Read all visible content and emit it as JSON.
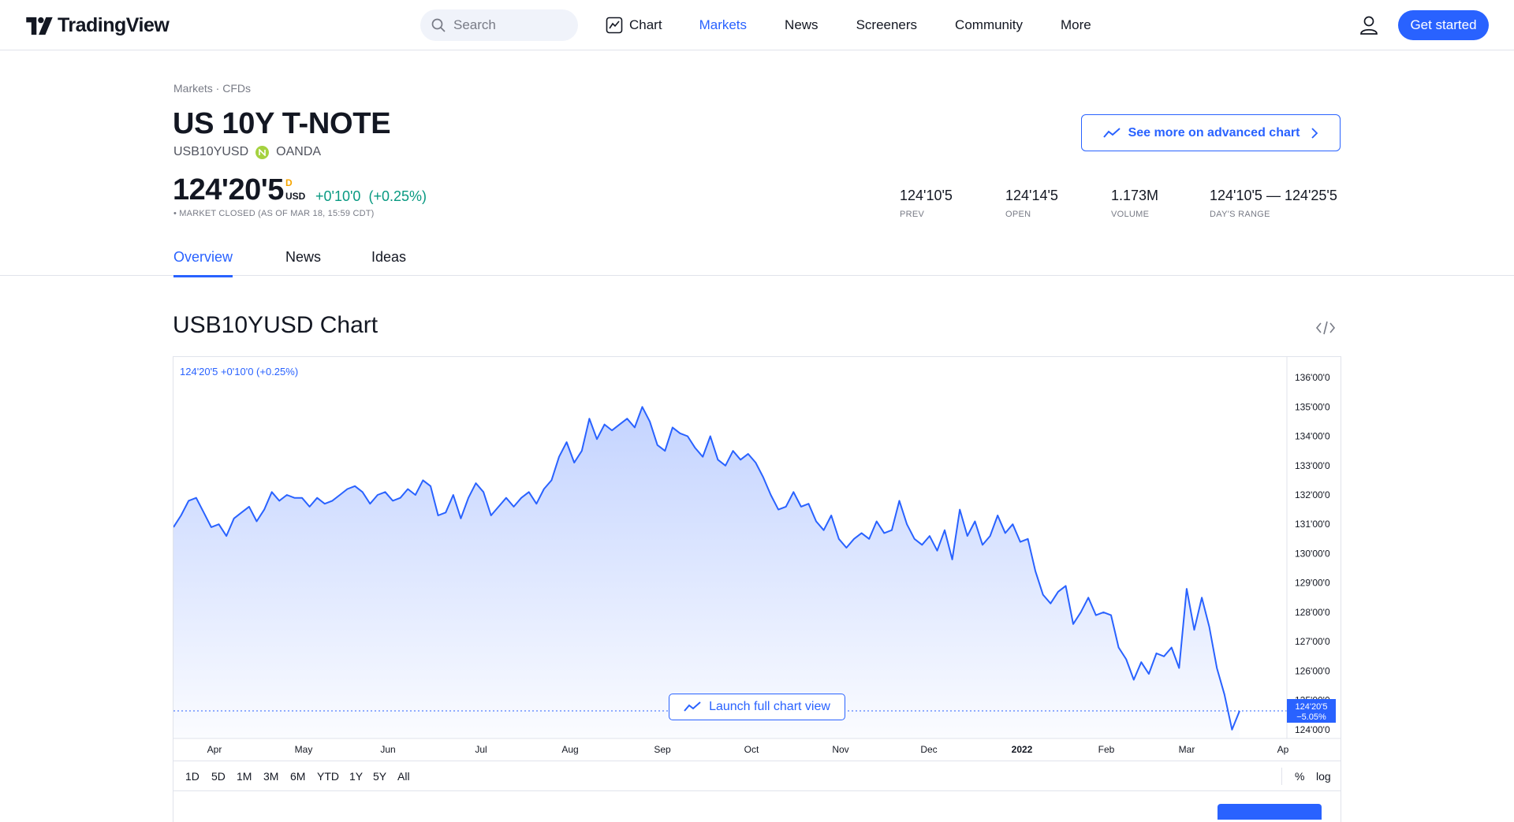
{
  "header": {
    "brand": "TradingView",
    "search_placeholder": "Search",
    "nav": [
      "Chart",
      "Markets",
      "News",
      "Screeners",
      "Community",
      "More"
    ],
    "nav_active": "Markets",
    "cta": "Get started"
  },
  "instrument": {
    "breadcrumb": "Markets · CFDs",
    "title": "US 10Y T-NOTE",
    "symbol": "USB10YUSD",
    "exchange": "OANDA",
    "advanced_chart_label": "See more on advanced chart",
    "price": "124'20'5",
    "price_flag": "D",
    "currency": "USD",
    "change": "+0'10'0",
    "change_pct": "(+0.25%)",
    "status": "• MARKET CLOSED (AS OF MAR 18, 15:59 CDT)",
    "stats": [
      {
        "value": "124'10'5",
        "label": "PREV"
      },
      {
        "value": "124'14'5",
        "label": "OPEN"
      },
      {
        "value": "1.173M",
        "label": "VOLUME"
      },
      {
        "value": "124'10'5 — 124'25'5",
        "label": "DAY'S RANGE"
      }
    ]
  },
  "tabs": [
    "Overview",
    "News",
    "Ideas"
  ],
  "tab_active": "Overview",
  "chart_section": {
    "heading": "USB10YUSD Chart",
    "legend": "124'20'5  +0'10'0 (+0.25%)",
    "launch_label": "Launch full chart view",
    "price_badge": [
      "124'20'5",
      "−5.05%"
    ],
    "ranges": [
      "1D",
      "5D",
      "1M",
      "3M",
      "6M",
      "YTD",
      "1Y",
      "5Y",
      "All"
    ],
    "scale_toggles": [
      "%",
      "log"
    ]
  },
  "colors": {
    "accent": "#2962ff",
    "positive": "#089981",
    "flag": "#f7a600"
  },
  "chart_data": {
    "type": "area",
    "title": "",
    "xlabel": "",
    "ylabel": "",
    "ylim": [
      123.7,
      136.7
    ],
    "x_ticks": [
      "Apr",
      "May",
      "Jun",
      "Jul",
      "Aug",
      "Sep",
      "Oct",
      "Nov",
      "Dec",
      "2022",
      "Feb",
      "Mar",
      "Ap"
    ],
    "y_ticks": [
      "136'00'0",
      "135'00'0",
      "134'00'0",
      "133'00'0",
      "132'00'0",
      "131'00'0",
      "130'00'0",
      "129'00'0",
      "128'00'0",
      "127'00'0",
      "126'00'0",
      "125'00'0",
      "124'00'0"
    ],
    "y_tick_values": [
      136,
      135,
      134,
      133,
      132,
      131,
      130,
      129,
      128,
      127,
      126,
      125,
      124
    ],
    "last_value": 124.64,
    "series": [
      {
        "x_index_start": 0,
        "x_index_end": 1,
        "values": [
          130.9,
          131.3,
          131.8,
          131.9,
          131.4,
          130.9,
          131.0,
          130.6,
          131.2,
          131.4,
          131.6,
          131.1,
          131.5,
          132.1,
          131.8,
          132.0,
          131.9,
          131.9,
          131.6,
          131.9,
          131.7,
          131.8,
          132.0,
          132.2,
          132.3,
          132.1,
          131.7,
          132.0,
          132.1,
          131.8,
          131.9,
          132.2,
          132.0,
          132.5,
          132.3,
          131.3,
          131.4,
          132.0,
          131.2,
          131.9,
          132.4,
          132.1,
          131.3,
          131.6,
          131.9,
          131.6,
          131.9,
          132.1,
          131.7,
          132.2,
          132.5,
          133.3,
          133.8,
          133.1,
          133.5,
          134.6,
          133.9,
          134.4,
          134.2,
          134.4,
          134.6,
          134.3,
          135.0,
          134.5,
          133.7,
          133.5,
          134.3,
          134.1,
          134.0,
          133.6,
          133.3,
          134.0,
          133.2,
          133.0,
          133.5,
          133.2,
          133.4,
          133.1,
          132.6,
          132.0,
          131.5,
          131.6,
          132.1,
          131.6,
          131.7,
          131.1,
          130.8,
          131.3,
          130.5,
          130.2,
          130.5,
          130.7,
          130.5,
          131.1,
          130.7,
          130.8,
          131.8,
          131.0,
          130.5,
          130.3,
          130.6,
          130.1,
          130.8,
          129.8,
          131.5,
          130.6,
          131.1,
          130.3,
          130.6,
          131.3,
          130.7,
          131.0,
          130.4,
          130.5,
          129.4,
          128.6,
          128.3,
          128.7,
          128.9,
          127.6,
          128.0,
          128.5,
          127.9,
          128.0,
          127.9,
          126.8,
          126.4,
          125.7,
          126.3,
          125.9,
          126.6,
          126.5,
          126.8,
          126.1,
          128.8,
          127.4,
          128.5,
          127.5,
          126.1,
          125.2,
          124.0,
          124.64
        ]
      }
    ]
  }
}
